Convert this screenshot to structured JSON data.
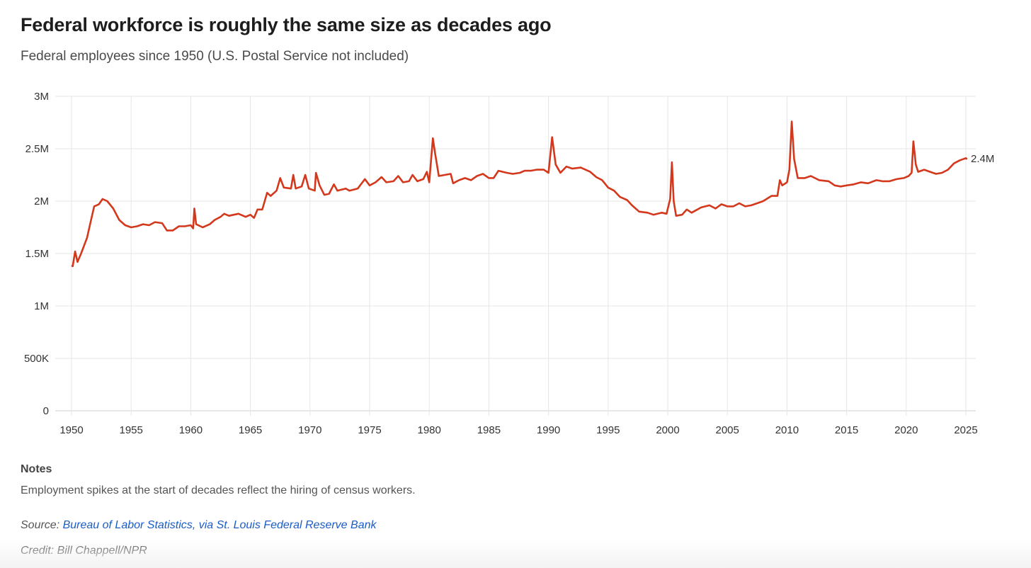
{
  "colors": {
    "line": "#d4381c",
    "grid": "#e6e6e6",
    "link": "#1a5cc8"
  },
  "chart_data": {
    "type": "line",
    "title": "Federal workforce is roughly the same size as decades ago",
    "subtitle": "Federal employees since 1950 (U.S. Postal Service not included)",
    "xlabel": "",
    "ylabel": "",
    "xlim": [
      1950,
      2025
    ],
    "ylim": [
      0,
      3000000
    ],
    "x_ticks": [
      1950,
      1955,
      1960,
      1965,
      1970,
      1975,
      1980,
      1985,
      1990,
      1995,
      2000,
      2005,
      2010,
      2015,
      2020,
      2025
    ],
    "x_tick_labels": [
      "1950",
      "1955",
      "1960",
      "1965",
      "1970",
      "1975",
      "1980",
      "1985",
      "1990",
      "1995",
      "2000",
      "2005",
      "2010",
      "2015",
      "2020",
      "2025"
    ],
    "y_ticks": [
      0,
      500000,
      1000000,
      1500000,
      2000000,
      2500000,
      3000000
    ],
    "y_tick_labels": [
      "0",
      "500K",
      "1M",
      "1.5M",
      "2M",
      "2.5M",
      "3M"
    ],
    "grid": true,
    "end_label": "2.4M",
    "series": [
      {
        "name": "Federal employees (millions)",
        "points": [
          [
            1950.0,
            1.385
          ],
          [
            1950.1,
            1.38
          ],
          [
            1950.3,
            1.52
          ],
          [
            1950.5,
            1.42
          ],
          [
            1950.8,
            1.5
          ],
          [
            1951.3,
            1.65
          ],
          [
            1951.6,
            1.8
          ],
          [
            1951.9,
            1.95
          ],
          [
            1952.3,
            1.97
          ],
          [
            1952.6,
            2.02
          ],
          [
            1953,
            2.0
          ],
          [
            1953.5,
            1.93
          ],
          [
            1954,
            1.82
          ],
          [
            1954.5,
            1.77
          ],
          [
            1955,
            1.75
          ],
          [
            1955.5,
            1.76
          ],
          [
            1956,
            1.78
          ],
          [
            1956.5,
            1.77
          ],
          [
            1957,
            1.8
          ],
          [
            1957.6,
            1.79
          ],
          [
            1958,
            1.72
          ],
          [
            1958.5,
            1.72
          ],
          [
            1959,
            1.76
          ],
          [
            1959.5,
            1.76
          ],
          [
            1960.0,
            1.77
          ],
          [
            1960.2,
            1.74
          ],
          [
            1960.3,
            1.93
          ],
          [
            1960.45,
            1.78
          ],
          [
            1961,
            1.75
          ],
          [
            1961.6,
            1.78
          ],
          [
            1962,
            1.82
          ],
          [
            1962.5,
            1.85
          ],
          [
            1962.8,
            1.88
          ],
          [
            1963.2,
            1.86
          ],
          [
            1964,
            1.88
          ],
          [
            1964.6,
            1.85
          ],
          [
            1965,
            1.87
          ],
          [
            1965.3,
            1.84
          ],
          [
            1965.6,
            1.92
          ],
          [
            1966,
            1.92
          ],
          [
            1966.4,
            2.08
          ],
          [
            1966.7,
            2.05
          ],
          [
            1967.2,
            2.1
          ],
          [
            1967.5,
            2.22
          ],
          [
            1967.8,
            2.13
          ],
          [
            1968.4,
            2.12
          ],
          [
            1968.6,
            2.25
          ],
          [
            1968.8,
            2.12
          ],
          [
            1969.3,
            2.14
          ],
          [
            1969.6,
            2.25
          ],
          [
            1969.9,
            2.12
          ],
          [
            1970.4,
            2.1
          ],
          [
            1970.5,
            2.27
          ],
          [
            1970.8,
            2.15
          ],
          [
            1971.2,
            2.06
          ],
          [
            1971.6,
            2.07
          ],
          [
            1972,
            2.16
          ],
          [
            1972.3,
            2.1
          ],
          [
            1973,
            2.12
          ],
          [
            1973.3,
            2.1
          ],
          [
            1974,
            2.12
          ],
          [
            1974.6,
            2.21
          ],
          [
            1975,
            2.15
          ],
          [
            1975.5,
            2.18
          ],
          [
            1976,
            2.23
          ],
          [
            1976.4,
            2.18
          ],
          [
            1977,
            2.19
          ],
          [
            1977.4,
            2.24
          ],
          [
            1977.8,
            2.18
          ],
          [
            1978.3,
            2.19
          ],
          [
            1978.6,
            2.25
          ],
          [
            1979,
            2.19
          ],
          [
            1979.5,
            2.21
          ],
          [
            1979.8,
            2.28
          ],
          [
            1980.0,
            2.18
          ],
          [
            1980.3,
            2.6
          ],
          [
            1980.5,
            2.45
          ],
          [
            1980.8,
            2.24
          ],
          [
            1981.3,
            2.25
          ],
          [
            1981.8,
            2.26
          ],
          [
            1982,
            2.17
          ],
          [
            1982.5,
            2.2
          ],
          [
            1983,
            2.22
          ],
          [
            1983.5,
            2.2
          ],
          [
            1984,
            2.24
          ],
          [
            1984.5,
            2.26
          ],
          [
            1985,
            2.22
          ],
          [
            1985.4,
            2.22
          ],
          [
            1985.8,
            2.29
          ],
          [
            1986.5,
            2.27
          ],
          [
            1987,
            2.26
          ],
          [
            1987.6,
            2.27
          ],
          [
            1988,
            2.29
          ],
          [
            1988.5,
            2.29
          ],
          [
            1989,
            2.3
          ],
          [
            1989.6,
            2.3
          ],
          [
            1990.0,
            2.27
          ],
          [
            1990.3,
            2.61
          ],
          [
            1990.6,
            2.35
          ],
          [
            1991,
            2.27
          ],
          [
            1991.5,
            2.33
          ],
          [
            1992,
            2.31
          ],
          [
            1992.7,
            2.32
          ],
          [
            1993.5,
            2.28
          ],
          [
            1994,
            2.23
          ],
          [
            1994.5,
            2.2
          ],
          [
            1995,
            2.13
          ],
          [
            1995.5,
            2.1
          ],
          [
            1996,
            2.04
          ],
          [
            1996.6,
            2.01
          ],
          [
            1997,
            1.96
          ],
          [
            1997.6,
            1.9
          ],
          [
            1998.3,
            1.89
          ],
          [
            1998.8,
            1.87
          ],
          [
            1999.5,
            1.89
          ],
          [
            1999.9,
            1.88
          ],
          [
            2000.2,
            2.02
          ],
          [
            2000.35,
            2.37
          ],
          [
            2000.5,
            2.0
          ],
          [
            2000.7,
            1.86
          ],
          [
            2001.2,
            1.87
          ],
          [
            2001.6,
            1.92
          ],
          [
            2002,
            1.89
          ],
          [
            2002.8,
            1.94
          ],
          [
            2003.5,
            1.96
          ],
          [
            2004,
            1.93
          ],
          [
            2004.5,
            1.97
          ],
          [
            2005,
            1.95
          ],
          [
            2005.5,
            1.95
          ],
          [
            2006,
            1.98
          ],
          [
            2006.5,
            1.95
          ],
          [
            2007,
            1.96
          ],
          [
            2007.5,
            1.98
          ],
          [
            2008,
            2.0
          ],
          [
            2008.7,
            2.05
          ],
          [
            2009.2,
            2.05
          ],
          [
            2009.4,
            2.2
          ],
          [
            2009.6,
            2.15
          ],
          [
            2010.0,
            2.18
          ],
          [
            2010.2,
            2.3
          ],
          [
            2010.4,
            2.76
          ],
          [
            2010.6,
            2.4
          ],
          [
            2010.9,
            2.22
          ],
          [
            2011.5,
            2.22
          ],
          [
            2012,
            2.24
          ],
          [
            2012.7,
            2.2
          ],
          [
            2013.5,
            2.19
          ],
          [
            2014,
            2.15
          ],
          [
            2014.5,
            2.14
          ],
          [
            2015,
            2.15
          ],
          [
            2015.6,
            2.16
          ],
          [
            2016.2,
            2.18
          ],
          [
            2016.8,
            2.17
          ],
          [
            2017.5,
            2.2
          ],
          [
            2018,
            2.19
          ],
          [
            2018.6,
            2.19
          ],
          [
            2019.2,
            2.21
          ],
          [
            2019.8,
            2.22
          ],
          [
            2020.2,
            2.24
          ],
          [
            2020.45,
            2.27
          ],
          [
            2020.6,
            2.57
          ],
          [
            2020.8,
            2.35
          ],
          [
            2021,
            2.28
          ],
          [
            2021.5,
            2.3
          ],
          [
            2022,
            2.28
          ],
          [
            2022.5,
            2.26
          ],
          [
            2023,
            2.27
          ],
          [
            2023.5,
            2.3
          ],
          [
            2024,
            2.36
          ],
          [
            2024.5,
            2.39
          ],
          [
            2025,
            2.41
          ],
          [
            2025.1,
            2.4
          ]
        ]
      }
    ]
  },
  "notes": {
    "heading": "Notes",
    "text": "Employment spikes at the start of decades reflect the hiring of census workers."
  },
  "source": {
    "label": "Source:",
    "link_text": "Bureau of Labor Statistics, via St. Louis Federal Reserve Bank"
  },
  "credit": "Credit: Bill Chappell/NPR"
}
